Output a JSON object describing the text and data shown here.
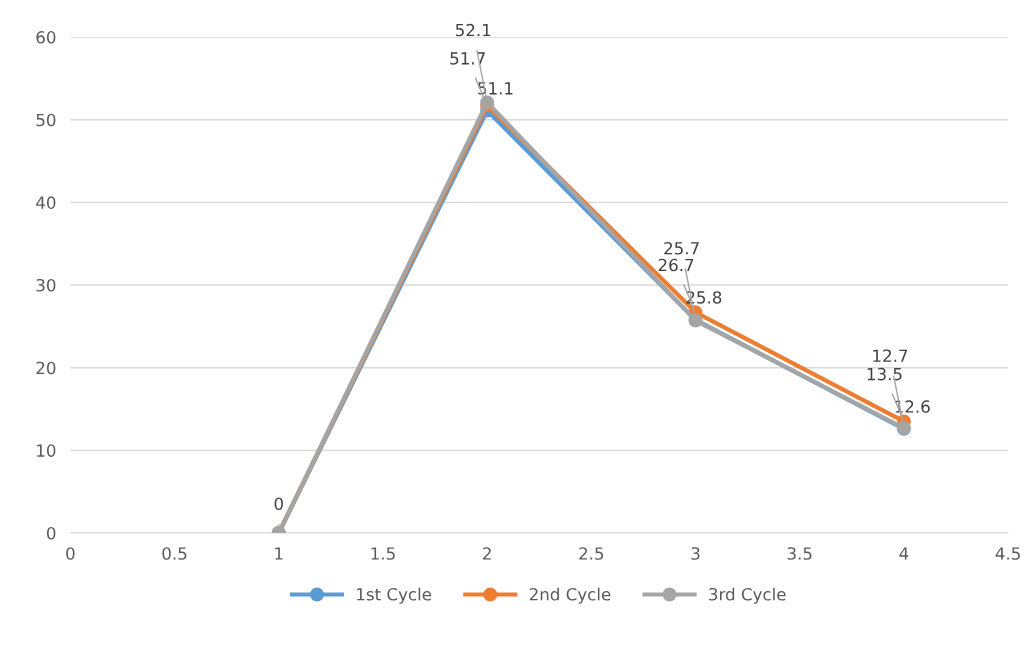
{
  "chart_data": {
    "type": "line",
    "x": [
      1,
      2,
      3,
      4
    ],
    "series": [
      {
        "name": "1st Cycle",
        "color": "#5b9bd5",
        "values": [
          0,
          51.1,
          25.8,
          12.6
        ],
        "value_labels": [
          "0",
          "51.1",
          "25.8",
          "12.6"
        ]
      },
      {
        "name": "2nd Cycle",
        "color": "#ed7d31",
        "values": [
          0,
          51.7,
          26.7,
          13.5
        ],
        "value_labels": [
          null,
          "51.7",
          "26.7",
          "13.5"
        ]
      },
      {
        "name": "3rd Cycle",
        "color": "#a5a5a5",
        "values": [
          0,
          52.1,
          25.7,
          12.7
        ],
        "value_labels": [
          null,
          "52.1",
          "25.7",
          "12.7"
        ]
      }
    ],
    "xlim": [
      0,
      4.5
    ],
    "xticks": [
      0,
      0.5,
      1,
      1.5,
      2,
      2.5,
      3,
      3.5,
      4,
      4.5
    ],
    "ylim": [
      0,
      60
    ],
    "yticks": [
      0,
      10,
      20,
      30,
      40,
      50,
      60
    ],
    "grid": "y",
    "legend": "bottom",
    "marker": "circle",
    "line_style": "solid"
  }
}
